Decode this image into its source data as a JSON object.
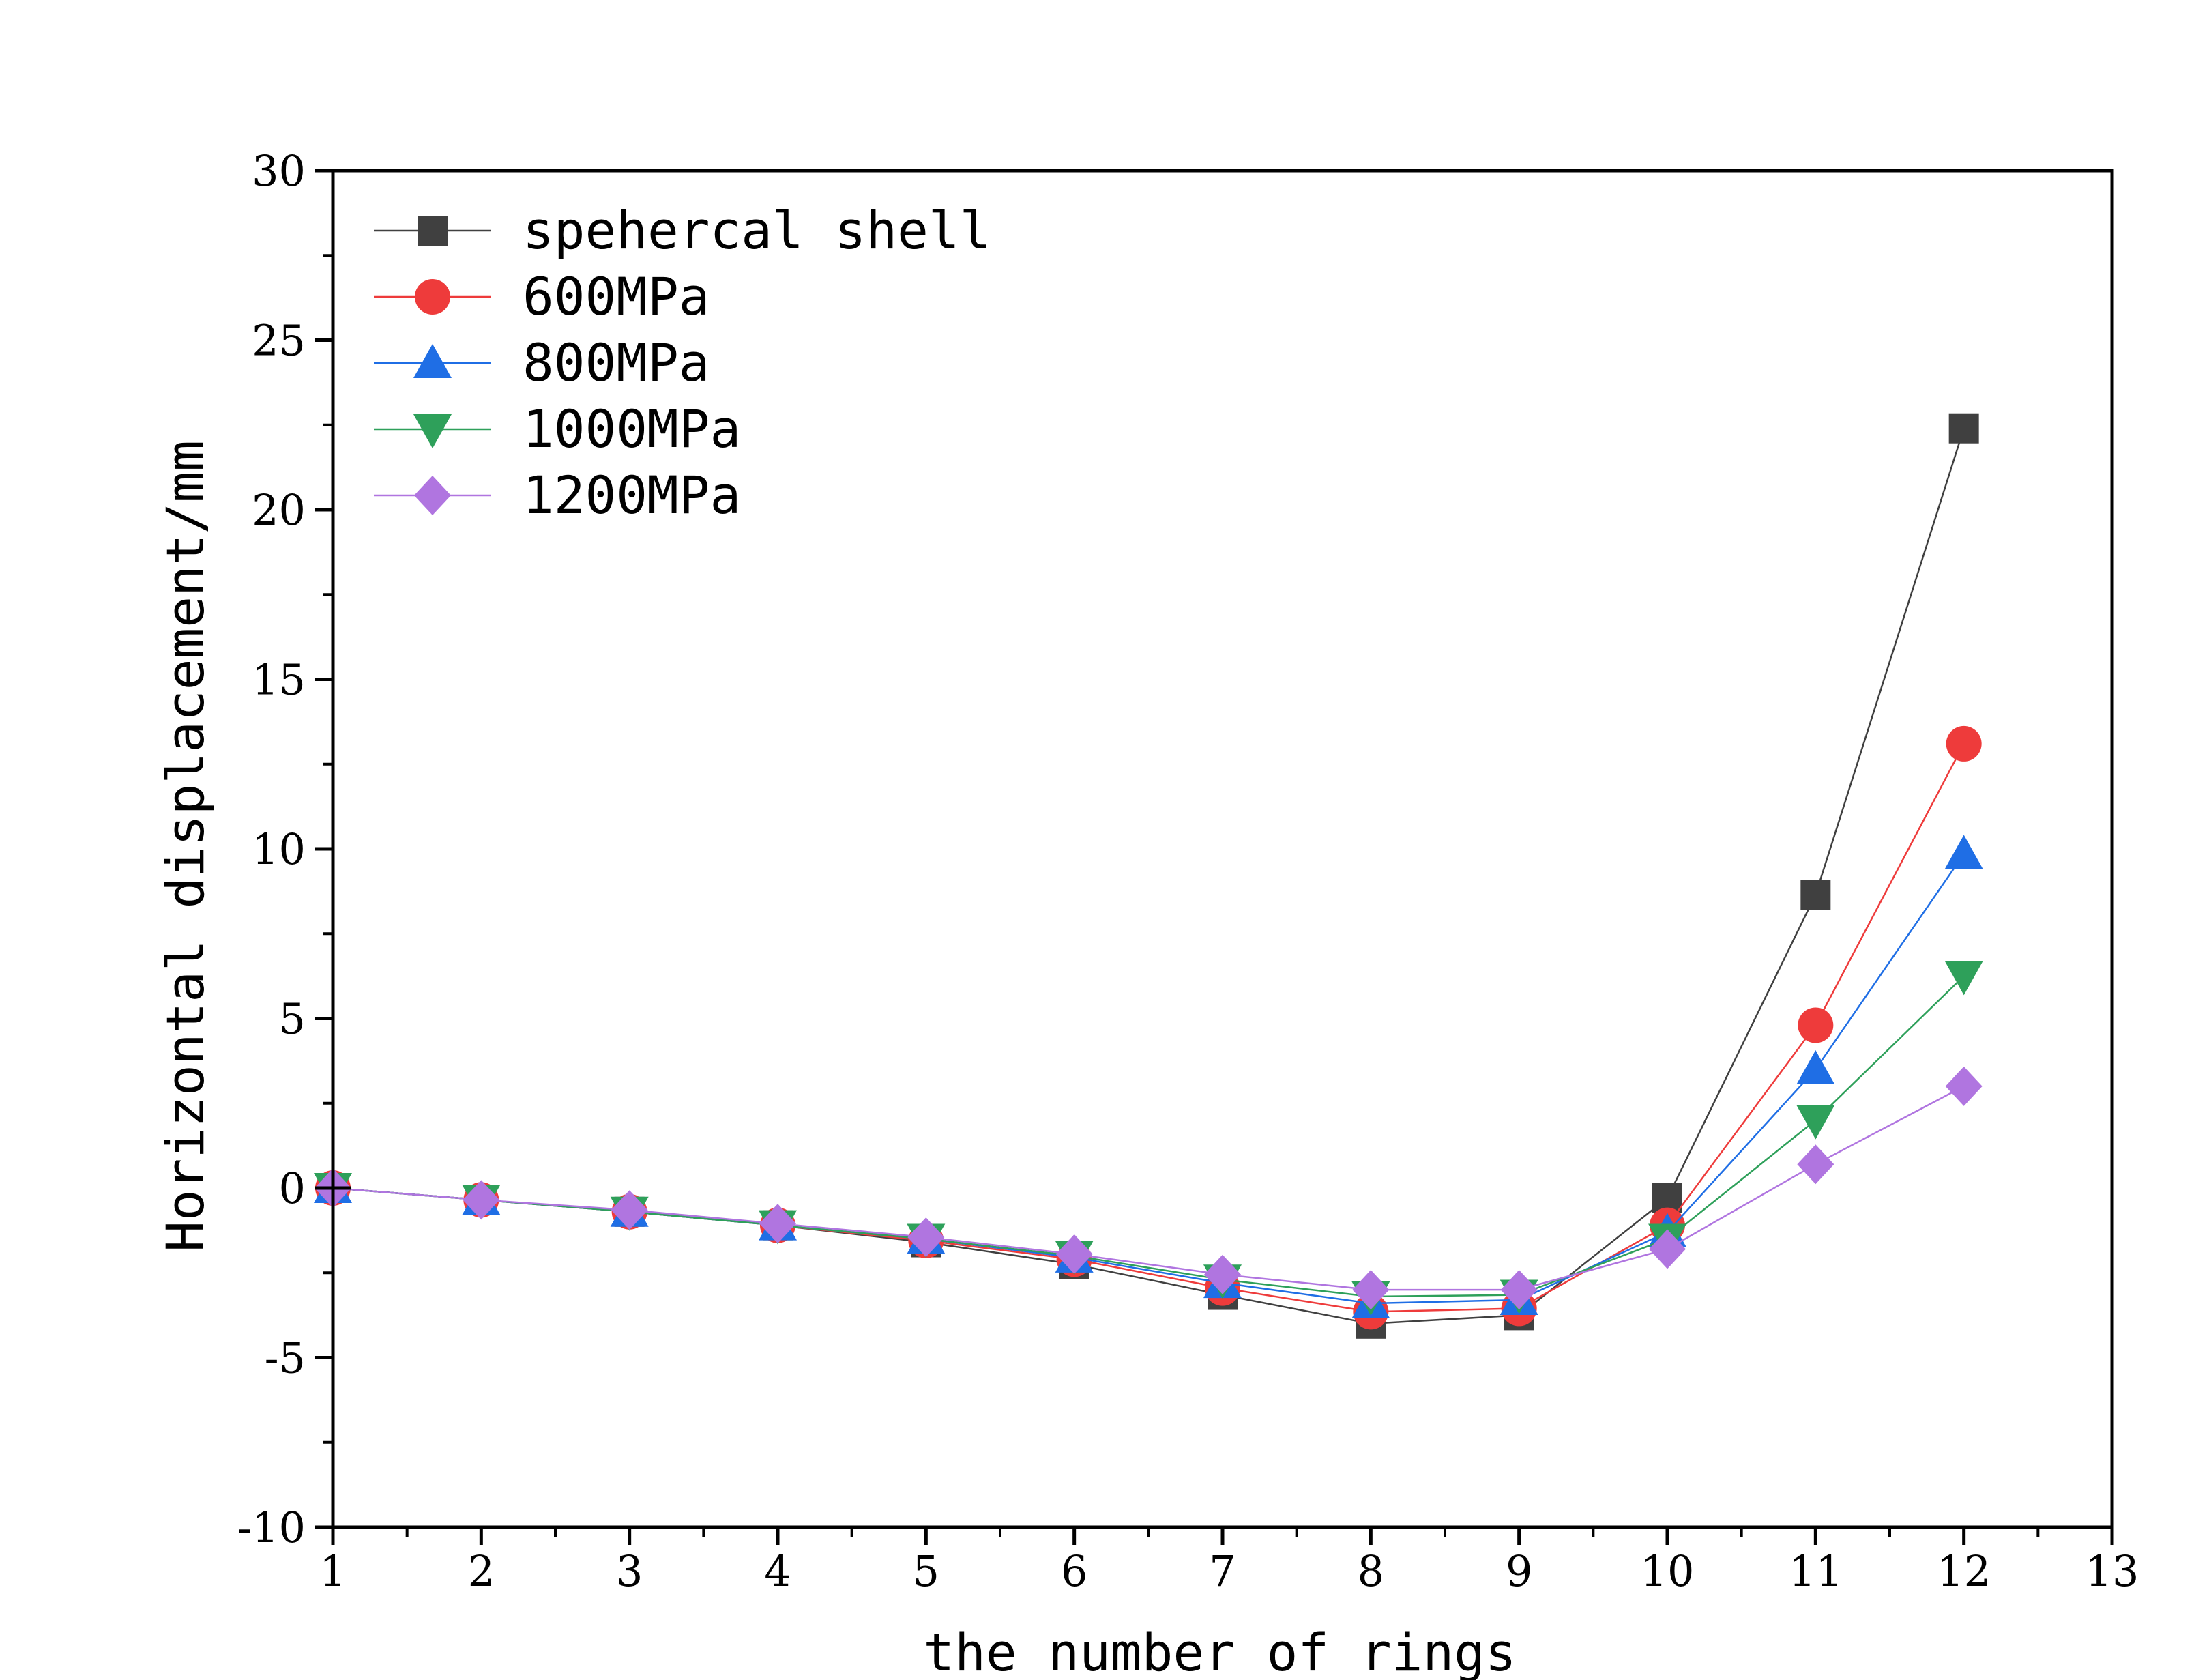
{
  "chart_data": {
    "type": "line",
    "title": "",
    "xlabel": "the number of rings",
    "ylabel": "Horizontal displacement/mm",
    "xlim": [
      1,
      13
    ],
    "ylim": [
      -10,
      30
    ],
    "x_ticks": [
      1,
      2,
      3,
      4,
      5,
      6,
      7,
      8,
      9,
      10,
      11,
      12,
      13
    ],
    "y_ticks": [
      -10,
      -5,
      0,
      5,
      10,
      15,
      20,
      25,
      30
    ],
    "grid": false,
    "legend_position": "top-left",
    "x": [
      1,
      2,
      3,
      4,
      5,
      6,
      7,
      8,
      9,
      10,
      11,
      12
    ],
    "series": [
      {
        "name": "spehercal shell",
        "color": "#404040",
        "marker": "square",
        "values": [
          0,
          -0.35,
          -0.7,
          -1.1,
          -1.6,
          -2.25,
          -3.15,
          -4.0,
          -3.75,
          -0.3,
          8.65,
          22.4
        ]
      },
      {
        "name": "600MPa",
        "color": "#ee3b3b",
        "marker": "circle",
        "values": [
          0,
          -0.35,
          -0.7,
          -1.1,
          -1.55,
          -2.1,
          -2.95,
          -3.65,
          -3.55,
          -1.1,
          4.8,
          13.1
        ]
      },
      {
        "name": "800MPa",
        "color": "#1f6ee5",
        "marker": "triangle-up",
        "values": [
          0,
          -0.35,
          -0.7,
          -1.1,
          -1.5,
          -2.05,
          -2.8,
          -3.4,
          -3.3,
          -1.3,
          3.5,
          9.85
        ]
      },
      {
        "name": "1000MPa",
        "color": "#2ea05a",
        "marker": "triangle-down",
        "values": [
          0,
          -0.35,
          -0.7,
          -1.1,
          -1.5,
          -2.0,
          -2.7,
          -3.2,
          -3.15,
          -1.5,
          2.0,
          6.25
        ]
      },
      {
        "name": "1200MPa",
        "color": "#b075e0",
        "marker": "diamond",
        "values": [
          0,
          -0.35,
          -0.65,
          -1.05,
          -1.45,
          -1.95,
          -2.55,
          -3.0,
          -3.0,
          -1.8,
          0.7,
          3.0
        ]
      }
    ]
  }
}
